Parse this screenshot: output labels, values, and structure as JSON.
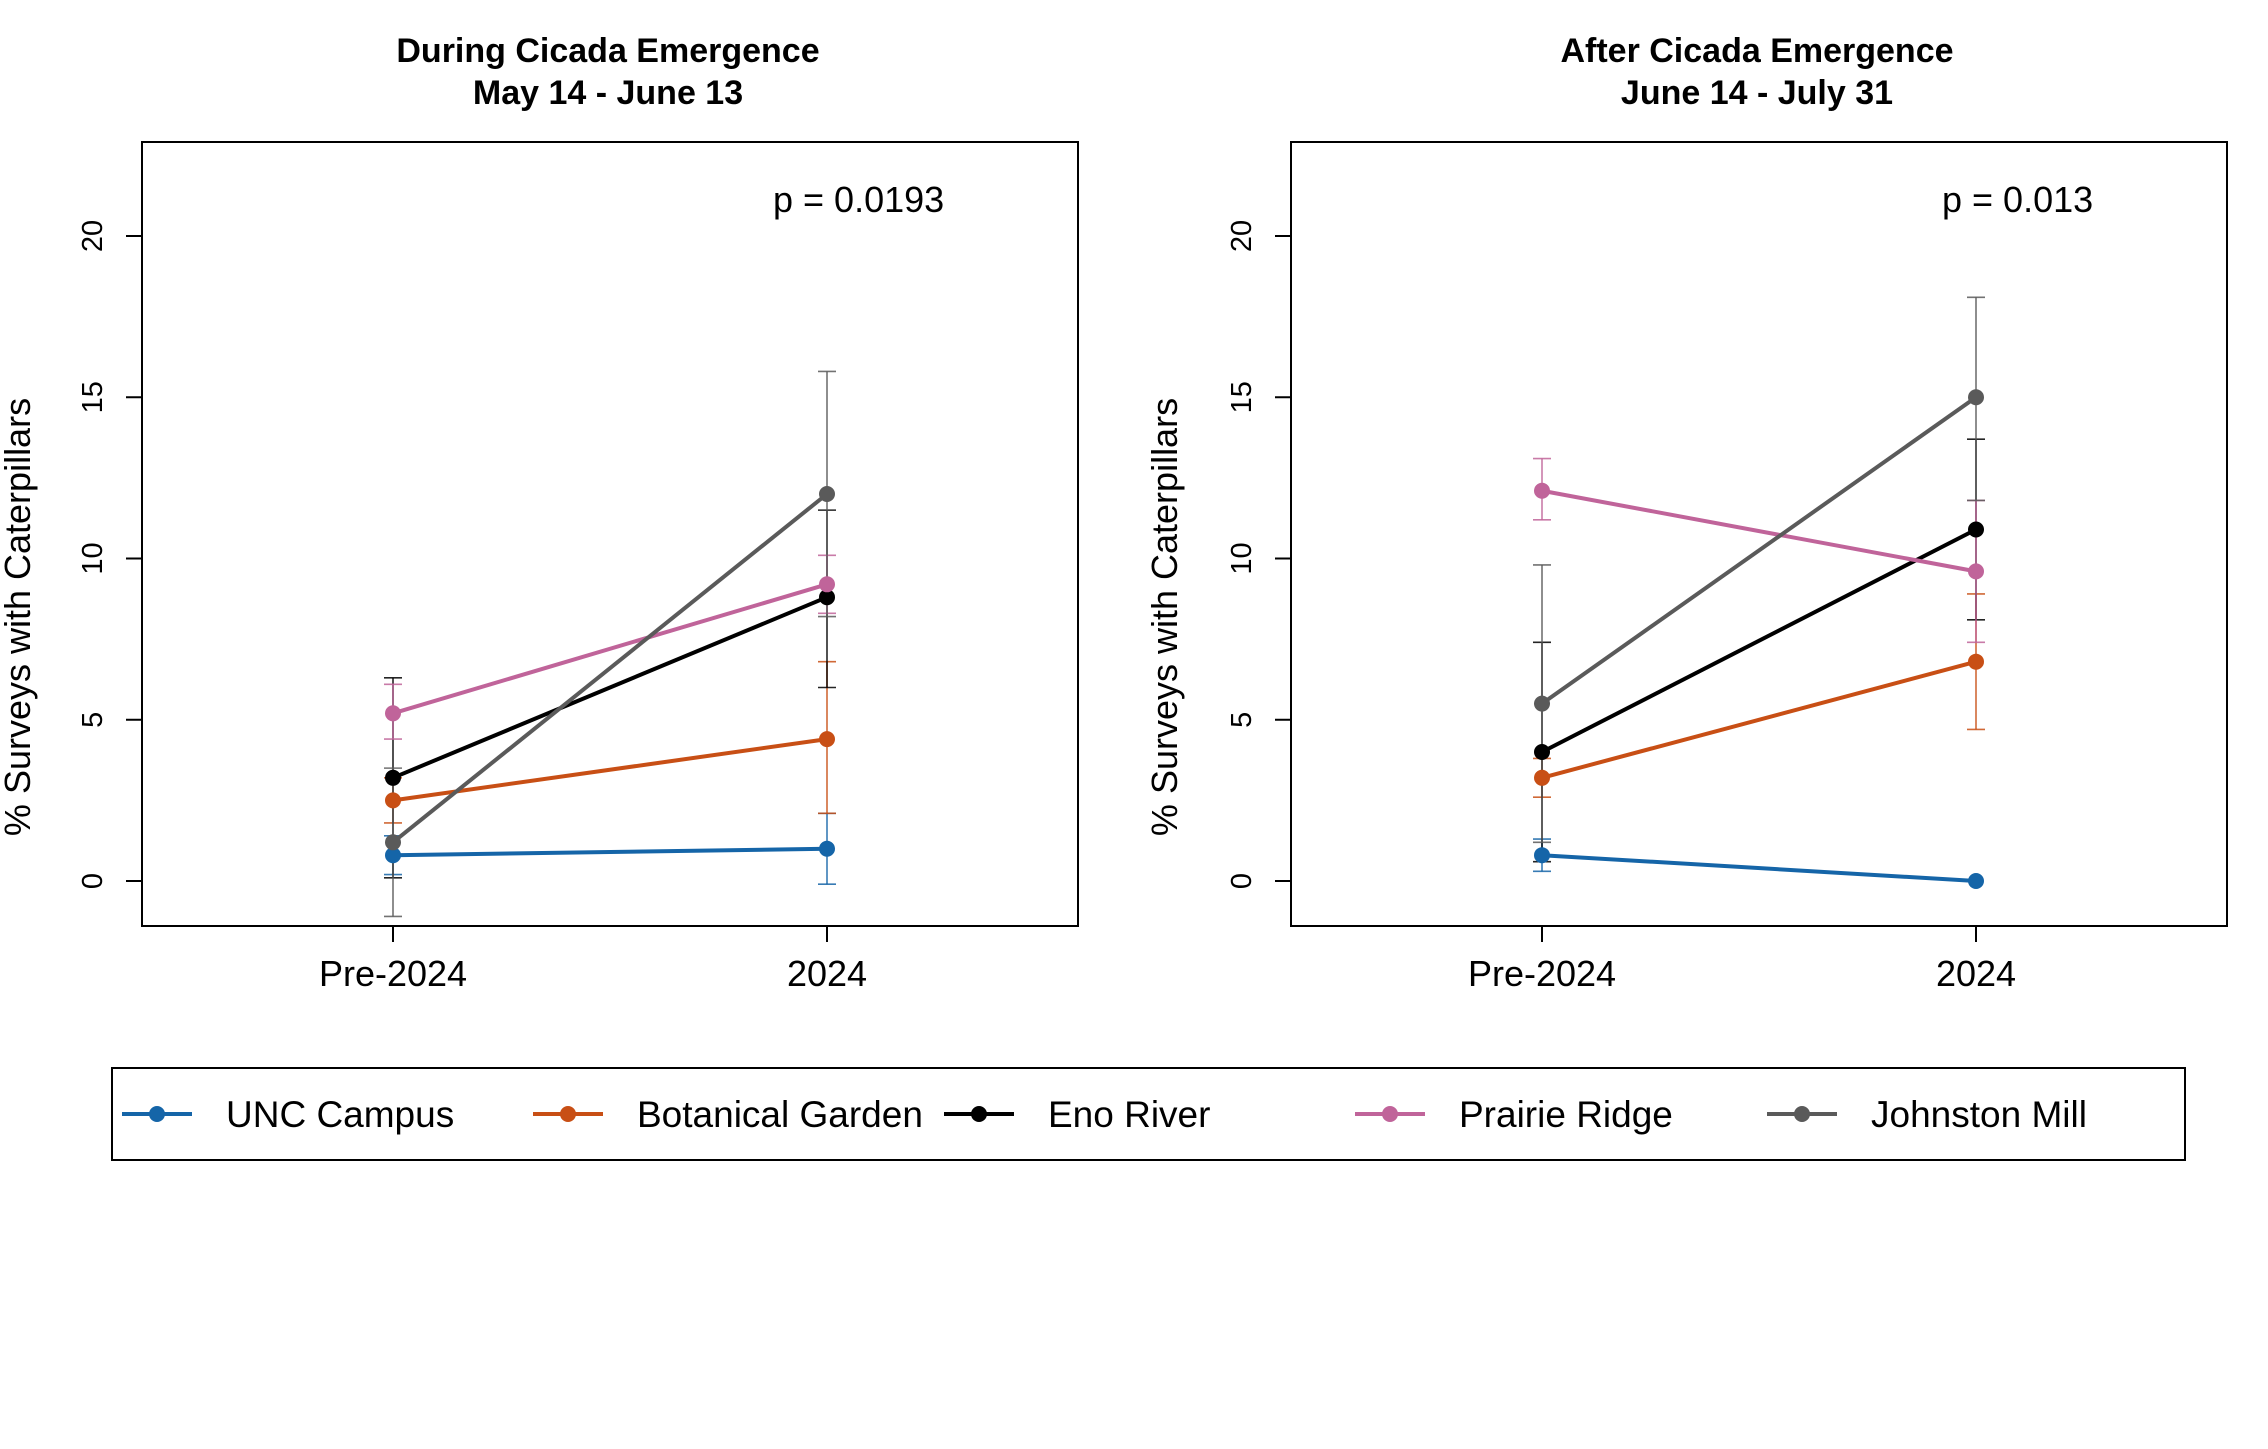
{
  "chart_data": [
    {
      "type": "line",
      "title": "During Cicada Emergence",
      "subtitle": "May 14 - June 13",
      "ylabel": "% Surveys with Caterpillars",
      "categories": [
        "Pre-2024",
        "2024"
      ],
      "ylim": [
        -1.4,
        22.9
      ],
      "yticks": [
        "0",
        "5",
        "10",
        "15",
        "20"
      ],
      "annotation": "p = 0.0193",
      "series": [
        {
          "name": "UNC Campus",
          "color": "#1565a8",
          "values": [
            0.8,
            1.0
          ],
          "err_low": [
            0.2,
            -0.1
          ],
          "err_high": [
            1.4,
            2.1
          ]
        },
        {
          "name": "Botanical Garden",
          "color": "#c84f15",
          "values": [
            2.5,
            4.4
          ],
          "err_low": [
            1.8,
            2.1
          ],
          "err_high": [
            3.2,
            6.8
          ]
        },
        {
          "name": "Eno River",
          "color": "#000000",
          "values": [
            3.2,
            8.8
          ],
          "err_low": [
            0.1,
            6.0
          ],
          "err_high": [
            6.3,
            11.5
          ]
        },
        {
          "name": "Prairie Ridge",
          "color": "#c0649a",
          "values": [
            5.2,
            9.2
          ],
          "err_low": [
            4.4,
            8.3
          ],
          "err_high": [
            6.1,
            10.1
          ]
        },
        {
          "name": "Johnston Mill",
          "color": "#5a5a5a",
          "values": [
            1.2,
            12.0
          ],
          "err_low": [
            -1.1,
            8.2
          ],
          "err_high": [
            3.5,
            15.8
          ]
        }
      ]
    },
    {
      "type": "line",
      "title": "After Cicada Emergence",
      "subtitle": "June 14 - July 31",
      "ylabel": "% Surveys with Caterpillars",
      "categories": [
        "Pre-2024",
        "2024"
      ],
      "ylim": [
        -1.4,
        22.9
      ],
      "yticks": [
        "0",
        "5",
        "10",
        "15",
        "20"
      ],
      "annotation": "p = 0.013",
      "series": [
        {
          "name": "UNC Campus",
          "color": "#1565a8",
          "values": [
            0.8,
            0.0
          ],
          "err_low": [
            0.3,
            0.0
          ],
          "err_high": [
            1.3,
            0.0
          ]
        },
        {
          "name": "Botanical Garden",
          "color": "#c84f15",
          "values": [
            3.2,
            6.8
          ],
          "err_low": [
            2.6,
            4.7
          ],
          "err_high": [
            3.8,
            8.9
          ]
        },
        {
          "name": "Eno River",
          "color": "#000000",
          "values": [
            4.0,
            10.9
          ],
          "err_low": [
            0.6,
            8.1
          ],
          "err_high": [
            7.4,
            13.7
          ]
        },
        {
          "name": "Prairie Ridge",
          "color": "#c0649a",
          "values": [
            12.1,
            9.6
          ],
          "err_low": [
            11.2,
            7.4
          ],
          "err_high": [
            13.1,
            11.8
          ]
        },
        {
          "name": "Johnston Mill",
          "color": "#5a5a5a",
          "values": [
            5.5,
            15.0
          ],
          "err_low": [
            1.2,
            11.8
          ],
          "err_high": [
            9.8,
            18.1
          ]
        }
      ]
    }
  ],
  "legend": {
    "position": "bottom",
    "items": [
      {
        "label": "UNC Campus",
        "color": "#1565a8"
      },
      {
        "label": "Botanical Garden",
        "color": "#c84f15"
      },
      {
        "label": "Eno River",
        "color": "#000000"
      },
      {
        "label": "Prairie Ridge",
        "color": "#c0649a"
      },
      {
        "label": "Johnston Mill",
        "color": "#5a5a5a"
      }
    ]
  }
}
